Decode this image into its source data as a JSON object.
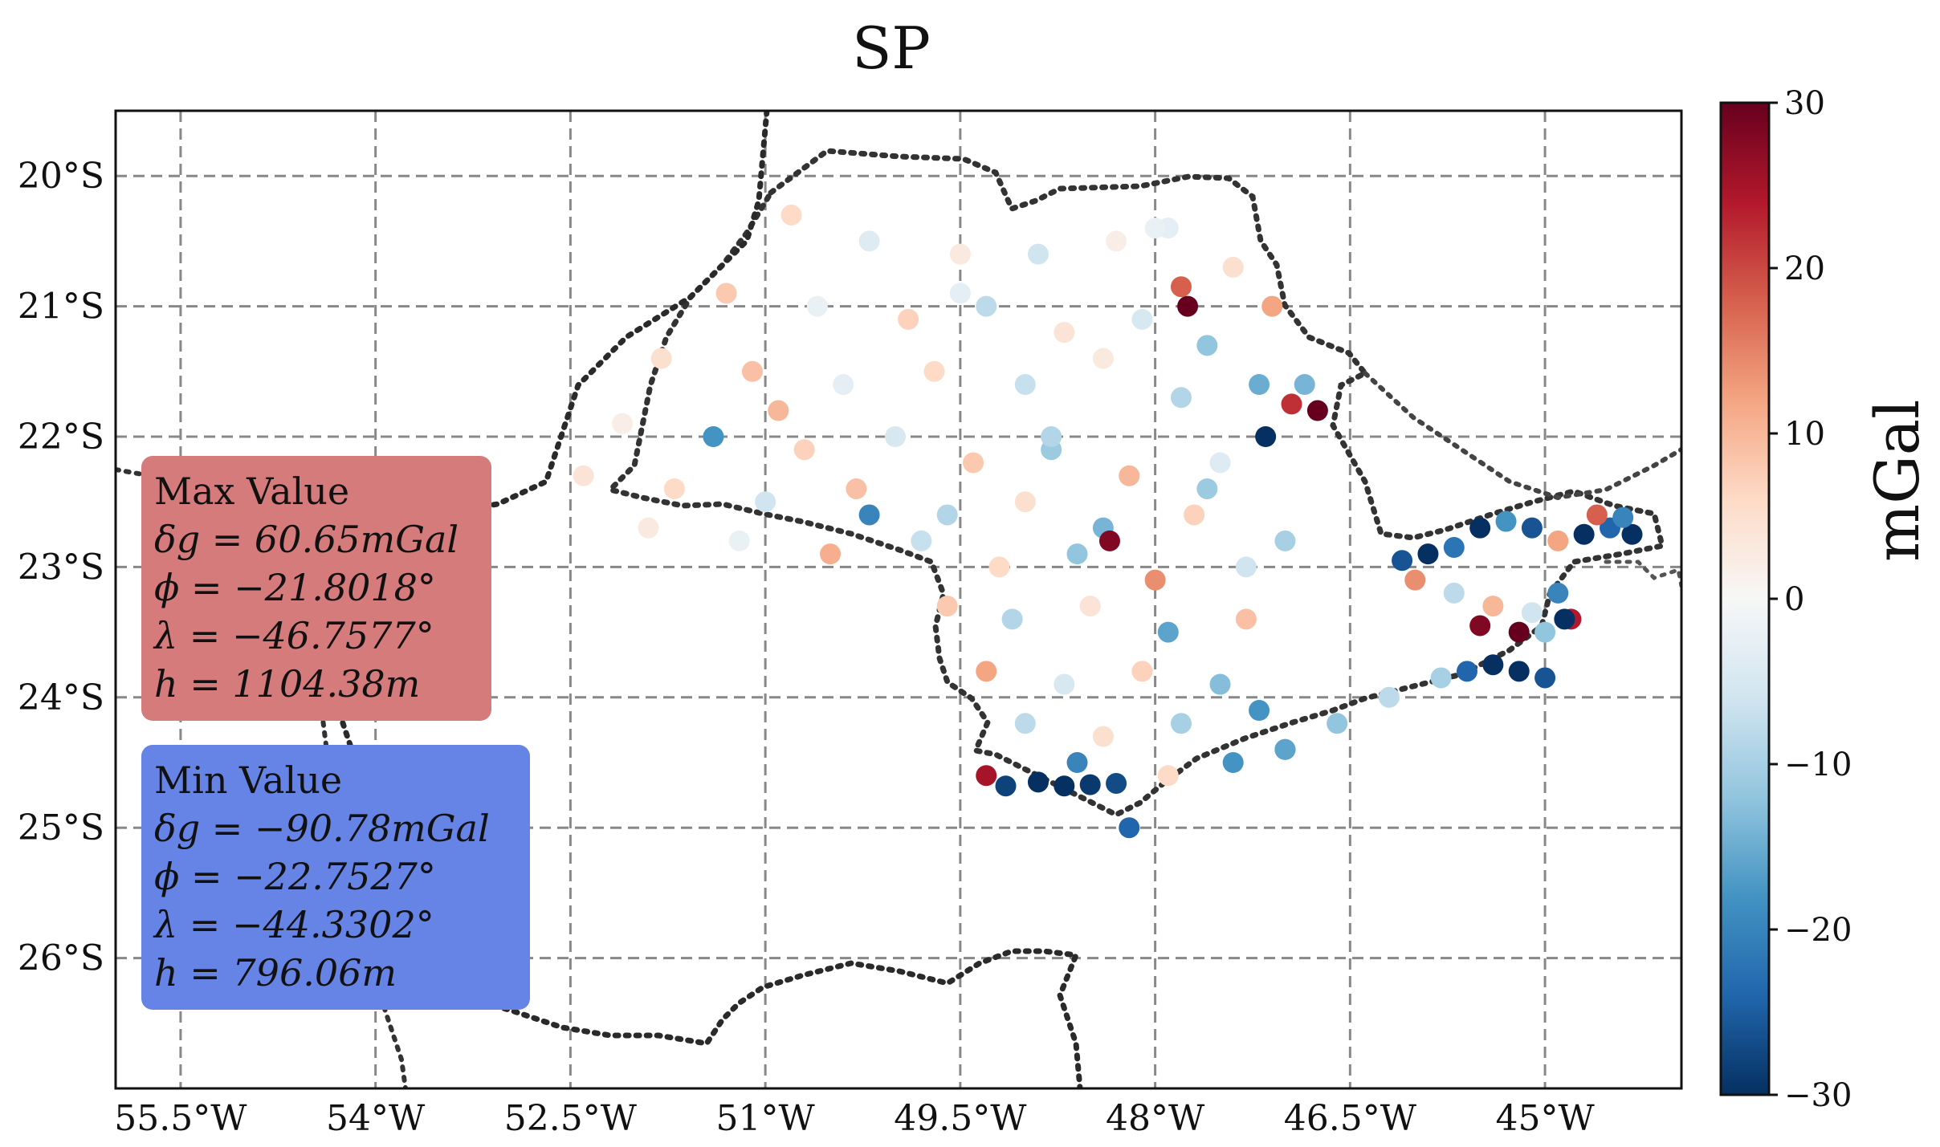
{
  "title": "SP",
  "colorbar": {
    "label": "mGal",
    "ticks": [
      "30",
      "20",
      "10",
      "0",
      "−10",
      "−20",
      "−30"
    ],
    "tick_values": [
      30,
      20,
      10,
      0,
      -10,
      -20,
      -30
    ],
    "range": [
      -30,
      30
    ],
    "colormap": [
      "#67001f",
      "#b2182b",
      "#d6604d",
      "#f4a582",
      "#fddbc7",
      "#f7f7f7",
      "#d1e5f0",
      "#92c5de",
      "#4393c3",
      "#2166ac",
      "#053061"
    ]
  },
  "max_box": {
    "heading": "Max Value",
    "dg_label": "δg = 60.65mGal",
    "phi_label": "ϕ = −21.8018°",
    "lambda_label": "λ = −46.7577°",
    "h_label": "h = 1104.38m",
    "color": "#d67b7b"
  },
  "min_box": {
    "heading": "Min Value",
    "dg_label": "δg = −90.78mGal",
    "phi_label": "ϕ = −22.7527°",
    "lambda_label": "λ = −44.3302°",
    "h_label": "h = 796.06m",
    "color": "#6683e6"
  },
  "chart_data": {
    "type": "scatter",
    "title": "SP",
    "xlabel": "",
    "ylabel": "",
    "xlim": [
      -56.0,
      -43.95
    ],
    "ylim": [
      -27.0,
      -19.5
    ],
    "x_ticks": [
      -55.5,
      -54.0,
      -52.5,
      -51.0,
      -49.5,
      -48.0,
      -46.5,
      -45.0
    ],
    "x_tick_labels": [
      "55.5°W",
      "54°W",
      "52.5°W",
      "51°W",
      "49.5°W",
      "48°W",
      "46.5°W",
      "45°W"
    ],
    "y_ticks": [
      -20,
      -21,
      -22,
      -23,
      -24,
      -25,
      -26
    ],
    "y_tick_labels": [
      "20°S",
      "21°S",
      "22°S",
      "23°S",
      "24°S",
      "25°S",
      "26°S"
    ],
    "grid": true,
    "colorbar_range": [
      -30,
      30
    ],
    "series": [
      {
        "points": [
          [
            -50.8,
            -20.3,
            6
          ],
          [
            -50.2,
            -20.5,
            -4
          ],
          [
            -49.5,
            -20.6,
            3
          ],
          [
            -48.9,
            -20.6,
            -6
          ],
          [
            -48.3,
            -20.5,
            2
          ],
          [
            -47.9,
            -20.4,
            -3
          ],
          [
            -47.4,
            -20.7,
            5
          ],
          [
            -51.3,
            -20.9,
            8
          ],
          [
            -50.6,
            -21.0,
            -2
          ],
          [
            -49.9,
            -21.1,
            7
          ],
          [
            -49.3,
            -21.0,
            -8
          ],
          [
            -48.7,
            -21.2,
            4
          ],
          [
            -48.1,
            -21.1,
            -5
          ],
          [
            -47.6,
            -21.3,
            -12
          ],
          [
            -47.1,
            -21.0,
            12
          ],
          [
            -51.8,
            -21.4,
            5
          ],
          [
            -51.1,
            -21.5,
            9
          ],
          [
            -50.4,
            -21.6,
            -3
          ],
          [
            -49.7,
            -21.5,
            6
          ],
          [
            -49.0,
            -21.6,
            -7
          ],
          [
            -48.4,
            -21.4,
            3
          ],
          [
            -47.8,
            -21.7,
            -9
          ],
          [
            -47.2,
            -21.6,
            -15
          ],
          [
            -52.1,
            -21.9,
            2
          ],
          [
            -51.4,
            -22.0,
            -18
          ],
          [
            -50.7,
            -22.1,
            7
          ],
          [
            -50.0,
            -22.0,
            -5
          ],
          [
            -49.4,
            -22.2,
            8
          ],
          [
            -48.8,
            -22.1,
            -11
          ],
          [
            -48.2,
            -22.3,
            10
          ],
          [
            -47.5,
            -22.2,
            -4
          ],
          [
            -52.4,
            -22.3,
            4
          ],
          [
            -51.7,
            -22.4,
            6
          ],
          [
            -51.0,
            -22.5,
            -6
          ],
          [
            -50.3,
            -22.4,
            9
          ],
          [
            -49.6,
            -22.6,
            -9
          ],
          [
            -49.0,
            -22.5,
            5
          ],
          [
            -48.4,
            -22.7,
            -14
          ],
          [
            -47.7,
            -22.6,
            7
          ],
          [
            -47.0,
            -22.8,
            -10
          ],
          [
            -51.9,
            -22.7,
            3
          ],
          [
            -51.2,
            -22.8,
            -2
          ],
          [
            -50.5,
            -22.9,
            11
          ],
          [
            -49.8,
            -22.8,
            -7
          ],
          [
            -49.2,
            -23.0,
            6
          ],
          [
            -48.6,
            -22.9,
            -12
          ],
          [
            -48.0,
            -23.1,
            14
          ],
          [
            -47.3,
            -23.0,
            -6
          ],
          [
            -49.6,
            -23.3,
            8
          ],
          [
            -49.1,
            -23.4,
            -9
          ],
          [
            -48.5,
            -23.3,
            4
          ],
          [
            -47.9,
            -23.5,
            -16
          ],
          [
            -47.3,
            -23.4,
            9
          ],
          [
            -49.3,
            -23.8,
            12
          ],
          [
            -48.7,
            -23.9,
            -5
          ],
          [
            -48.1,
            -23.8,
            7
          ],
          [
            -47.5,
            -23.9,
            -13
          ],
          [
            -49.0,
            -24.2,
            -8
          ],
          [
            -48.4,
            -24.3,
            5
          ],
          [
            -47.8,
            -24.2,
            -10
          ],
          [
            -47.2,
            -24.1,
            -18
          ],
          [
            -48.6,
            -24.5,
            -20
          ],
          [
            -47.9,
            -24.6,
            6
          ],
          [
            -47.0,
            -24.4,
            -22
          ],
          [
            -49.3,
            -24.6,
            25
          ],
          [
            -49.15,
            -24.68,
            -28
          ],
          [
            -48.9,
            -24.65,
            -30
          ],
          [
            -48.7,
            -24.68,
            -30
          ],
          [
            -48.5,
            -24.67,
            -29
          ],
          [
            -48.3,
            -24.66,
            -27
          ],
          [
            -48.2,
            -25.0,
            -24
          ],
          [
            -47.75,
            -21.0,
            30
          ],
          [
            -47.8,
            -20.85,
            18
          ],
          [
            -46.95,
            -21.75,
            22
          ],
          [
            -46.75,
            -21.8,
            30
          ],
          [
            -46.85,
            -21.6,
            -14
          ],
          [
            -47.15,
            -22.0,
            -30
          ],
          [
            -48.35,
            -22.8,
            28
          ],
          [
            -46.1,
            -22.95,
            -26
          ],
          [
            -45.9,
            -22.9,
            -30
          ],
          [
            -45.7,
            -22.85,
            -22
          ],
          [
            -45.5,
            -22.7,
            -30
          ],
          [
            -45.3,
            -22.65,
            -18
          ],
          [
            -45.1,
            -22.7,
            -26
          ],
          [
            -44.9,
            -22.8,
            12
          ],
          [
            -44.7,
            -22.75,
            -30
          ],
          [
            -44.5,
            -22.7,
            -24
          ],
          [
            -44.33,
            -22.75,
            -30
          ],
          [
            -44.4,
            -22.62,
            -20
          ],
          [
            -44.6,
            -22.6,
            18
          ],
          [
            -46.0,
            -23.1,
            14
          ],
          [
            -45.7,
            -23.2,
            -8
          ],
          [
            -45.4,
            -23.3,
            10
          ],
          [
            -45.1,
            -23.35,
            -6
          ],
          [
            -44.9,
            -23.2,
            -20
          ],
          [
            -44.8,
            -23.4,
            24
          ],
          [
            -45.2,
            -23.5,
            30
          ],
          [
            -45.5,
            -23.45,
            28
          ],
          [
            -45.0,
            -23.5,
            -12
          ],
          [
            -45.4,
            -23.75,
            -30
          ],
          [
            -45.6,
            -23.8,
            -24
          ],
          [
            -45.2,
            -23.8,
            -30
          ],
          [
            -45.0,
            -23.85,
            -26
          ],
          [
            -44.85,
            -23.4,
            -30
          ],
          [
            -46.2,
            -24.0,
            -8
          ],
          [
            -46.6,
            -24.2,
            -12
          ],
          [
            -47.0,
            -24.4,
            -16
          ],
          [
            -47.4,
            -24.5,
            -18
          ],
          [
            -45.8,
            -23.85,
            -10
          ],
          [
            -50.2,
            -22.6,
            -20
          ],
          [
            -47.6,
            -22.4,
            -11
          ],
          [
            -48.8,
            -22.0,
            -9
          ],
          [
            -50.9,
            -21.8,
            10
          ],
          [
            -49.5,
            -20.9,
            -3
          ],
          [
            -48.0,
            -20.4,
            -2
          ]
        ]
      }
    ]
  }
}
